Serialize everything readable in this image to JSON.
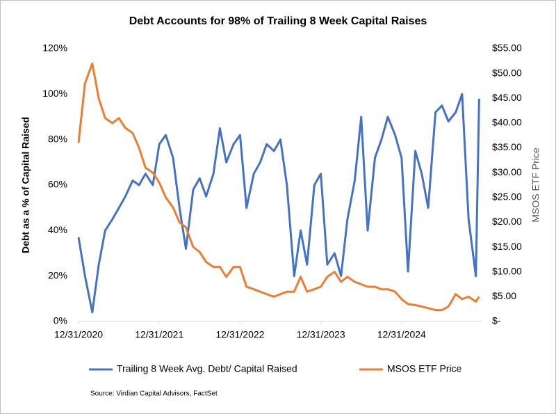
{
  "chart_data": {
    "type": "line",
    "title": "Debt Accounts for 98% of Trailing 8 Week Capital Raises",
    "y_label": "Debt as a % of Capital Raised",
    "y2_label": "MSOS ETF Price",
    "source": "Source: Virdian Capital Advisors, FactSet",
    "legend": "bottom",
    "x": [
      2021.0,
      2021.08,
      2021.17,
      2021.25,
      2021.33,
      2021.42,
      2021.5,
      2021.58,
      2021.67,
      2021.75,
      2021.83,
      2021.92,
      2022.0,
      2022.08,
      2022.17,
      2022.25,
      2022.33,
      2022.42,
      2022.5,
      2022.58,
      2022.67,
      2022.75,
      2022.83,
      2022.92,
      2023.0,
      2023.08,
      2023.17,
      2023.25,
      2023.33,
      2023.42,
      2023.5,
      2023.58,
      2023.67,
      2023.75,
      2023.83,
      2023.92,
      2024.0,
      2024.08,
      2024.17,
      2024.25,
      2024.33,
      2024.42,
      2024.5,
      2024.58,
      2024.67,
      2024.75,
      2024.83,
      2024.92,
      2025.0,
      2025.08,
      2025.17,
      2025.25,
      2025.33,
      2025.42,
      2025.5,
      2025.58,
      2025.67,
      2025.75,
      2025.83,
      2025.92,
      2025.96
    ],
    "xlim": [
      2021,
      2026
    ],
    "xticks": [
      {
        "value": 2021,
        "label": "12/31/2020"
      },
      {
        "value": 2022,
        "label": "12/31/2021"
      },
      {
        "value": 2023,
        "label": "12/31/2022"
      },
      {
        "value": 2024,
        "label": "12/31/2023"
      },
      {
        "value": 2025,
        "label": "12/31/2024"
      }
    ],
    "ylim": [
      0,
      120
    ],
    "yticks": [
      {
        "value": 0,
        "label": "0%"
      },
      {
        "value": 20,
        "label": "20%"
      },
      {
        "value": 40,
        "label": "40%"
      },
      {
        "value": 60,
        "label": "60%"
      },
      {
        "value": 80,
        "label": "80%"
      },
      {
        "value": 100,
        "label": "100%"
      },
      {
        "value": 120,
        "label": "120%"
      }
    ],
    "y2lim": [
      0,
      55
    ],
    "y2ticks": [
      {
        "value": 0,
        "label": "$-"
      },
      {
        "value": 5,
        "label": "$5.00"
      },
      {
        "value": 10,
        "label": "$10.00"
      },
      {
        "value": 15,
        "label": "$15.00"
      },
      {
        "value": 20,
        "label": "$20.00"
      },
      {
        "value": 25,
        "label": "$25.00"
      },
      {
        "value": 30,
        "label": "$30.00"
      },
      {
        "value": 35,
        "label": "$35.00"
      },
      {
        "value": 40,
        "label": "$40.00"
      },
      {
        "value": 45,
        "label": "$45.00"
      },
      {
        "value": 50,
        "label": "$50.00"
      },
      {
        "value": 55,
        "label": "$55.00"
      }
    ],
    "series": [
      {
        "name": "Trailing 8 Week Avg. Debt/ Capital Raised",
        "color": "#4472c4",
        "values": [
          37,
          20,
          4,
          25,
          40,
          45,
          50,
          55,
          62,
          60,
          65,
          60,
          78,
          82,
          72,
          50,
          32,
          58,
          63,
          55,
          65,
          85,
          70,
          78,
          82,
          50,
          65,
          70,
          78,
          75,
          80,
          60,
          20,
          40,
          25,
          60,
          65,
          25,
          30,
          20,
          45,
          62,
          90,
          40,
          72,
          80,
          90,
          82,
          72,
          22,
          75,
          65,
          50,
          92,
          95,
          88,
          92,
          100,
          45,
          20,
          98
        ]
      },
      {
        "name": "MSOS ETF Price",
        "color": "#ed7d31",
        "axis": "y2",
        "values": [
          36,
          48,
          52,
          45,
          41,
          40,
          41,
          39,
          38,
          35,
          31,
          30,
          28,
          25,
          23,
          20,
          19,
          15,
          14,
          12,
          11,
          11,
          9,
          11,
          11,
          7,
          6.5,
          6,
          5.5,
          5,
          5.5,
          6,
          6,
          9,
          6,
          6.5,
          7,
          9,
          10,
          8,
          9,
          8,
          7.5,
          7,
          7,
          6.5,
          6.5,
          6,
          4.5,
          3.5,
          3.3,
          3,
          2.7,
          2.3,
          2.3,
          3,
          5.5,
          4.5,
          5,
          4,
          5
        ]
      }
    ]
  }
}
